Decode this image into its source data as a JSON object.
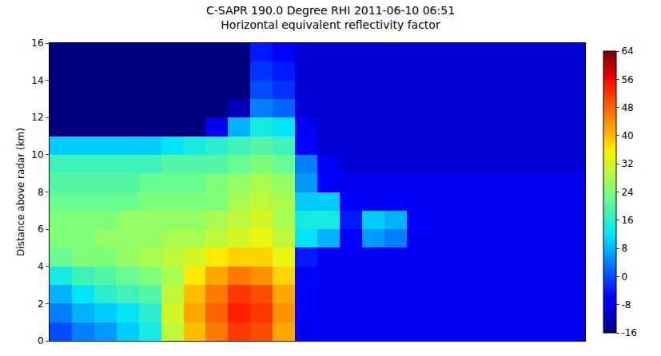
{
  "chart_data": {
    "type": "heatmap",
    "title": "C-SAPR 190.0 Degree RHI 2011-06-10 06:51",
    "subtitle": "Horizontal equivalent reflectivity factor",
    "y_label": "Distance above radar (km)",
    "tick_labels": "y",
    "x": [
      1,
      3,
      5,
      7,
      9,
      11,
      13,
      15,
      17,
      19,
      21,
      23,
      25,
      27,
      29,
      31,
      33,
      35,
      37,
      39,
      41,
      43,
      45,
      47
    ],
    "y": [
      0.5,
      1.5,
      2.5,
      3.5,
      4.5,
      5.5,
      6.5,
      7.5,
      8.5,
      9.5,
      10.5,
      11.5,
      12.5,
      13.5,
      14.5,
      15.5
    ],
    "xlim": [
      0,
      48
    ],
    "ylim": [
      0,
      16
    ],
    "yticks": [
      0,
      2,
      4,
      6,
      8,
      10,
      12,
      14,
      16
    ],
    "z": [
      [
        0,
        4,
        6,
        10,
        14,
        30,
        40,
        46,
        52,
        50,
        42,
        -8,
        -8,
        -8,
        -8,
        -8,
        -8,
        -8,
        -8,
        -8,
        -8,
        -8,
        -8,
        -8
      ],
      [
        4,
        8,
        10,
        12,
        16,
        32,
        42,
        48,
        54,
        52,
        44,
        -6,
        -8,
        -8,
        -8,
        -8,
        -8,
        -8,
        -8,
        -8,
        -8,
        -8,
        -8,
        -8
      ],
      [
        8,
        12,
        16,
        18,
        20,
        30,
        40,
        46,
        52,
        50,
        42,
        -6,
        -8,
        -8,
        -8,
        -8,
        -8,
        -8,
        -8,
        -8,
        -8,
        -8,
        -8,
        -8
      ],
      [
        14,
        18,
        20,
        22,
        24,
        28,
        36,
        42,
        46,
        44,
        38,
        -6,
        -8,
        -8,
        -8,
        -8,
        -8,
        -8,
        -8,
        -8,
        -8,
        -8,
        -8,
        -8
      ],
      [
        22,
        24,
        24,
        26,
        28,
        30,
        32,
        36,
        38,
        38,
        34,
        -4,
        -8,
        -8,
        -8,
        -8,
        -8,
        -8,
        -8,
        -8,
        -8,
        -8,
        -8,
        -8
      ],
      [
        24,
        24,
        26,
        26,
        26,
        28,
        28,
        30,
        32,
        34,
        30,
        12,
        8,
        -6,
        6,
        4,
        -8,
        -8,
        -8,
        -8,
        -8,
        -8,
        -8,
        -8
      ],
      [
        24,
        24,
        24,
        26,
        26,
        26,
        26,
        28,
        30,
        32,
        28,
        14,
        14,
        -4,
        10,
        8,
        -6,
        -8,
        -8,
        -8,
        -8,
        -8,
        -8,
        -8
      ],
      [
        22,
        22,
        22,
        22,
        24,
        24,
        24,
        24,
        28,
        30,
        28,
        10,
        10,
        -6,
        -8,
        -6,
        -8,
        -8,
        -8,
        -8,
        -8,
        -8,
        -8,
        -8
      ],
      [
        20,
        20,
        20,
        20,
        22,
        22,
        22,
        24,
        26,
        28,
        26,
        6,
        -6,
        -8,
        -8,
        -8,
        -8,
        -8,
        -8,
        -8,
        -8,
        -8,
        -8,
        -8
      ],
      [
        18,
        18,
        18,
        18,
        18,
        20,
        20,
        20,
        22,
        24,
        22,
        4,
        -8,
        -10,
        -10,
        -10,
        -10,
        -10,
        -10,
        -10,
        -10,
        -10,
        -10,
        -10
      ],
      [
        10,
        10,
        10,
        10,
        10,
        12,
        14,
        16,
        18,
        20,
        18,
        -6,
        -10,
        -10,
        -10,
        -10,
        -10,
        -10,
        -10,
        -10,
        -10,
        -10,
        -10,
        -10
      ],
      [
        -16,
        -16,
        -16,
        -16,
        -16,
        -16,
        -16,
        -8,
        8,
        14,
        12,
        -8,
        -10,
        -10,
        -10,
        -10,
        -10,
        -10,
        -10,
        -10,
        -10,
        -10,
        -10,
        -10
      ],
      [
        -16,
        -16,
        -16,
        -16,
        -16,
        -16,
        -16,
        -16,
        -12,
        4,
        2,
        -10,
        -10,
        -10,
        -10,
        -10,
        -10,
        -10,
        -10,
        -10,
        -10,
        -10,
        -10,
        -10
      ],
      [
        -16,
        -16,
        -16,
        -16,
        -16,
        -16,
        -16,
        -16,
        -16,
        0,
        -2,
        -10,
        -10,
        -10,
        -10,
        -10,
        -10,
        -10,
        -10,
        -10,
        -10,
        -10,
        -10,
        -10
      ],
      [
        -16,
        -16,
        -16,
        -16,
        -16,
        -16,
        -16,
        -16,
        -16,
        -2,
        -4,
        -10,
        -10,
        -10,
        -10,
        -10,
        -10,
        -10,
        -10,
        -10,
        -10,
        -10,
        -10,
        -10
      ],
      [
        -16,
        -16,
        -16,
        -16,
        -16,
        -16,
        -16,
        -16,
        -16,
        -4,
        -6,
        -10,
        -10,
        -10,
        -10,
        -10,
        -10,
        -10,
        -10,
        -10,
        -10,
        -10,
        -10,
        -10
      ]
    ],
    "zlim": [
      -16,
      64
    ],
    "zticks": [
      -16,
      -8,
      0,
      8,
      16,
      24,
      32,
      40,
      48,
      56,
      64
    ]
  }
}
